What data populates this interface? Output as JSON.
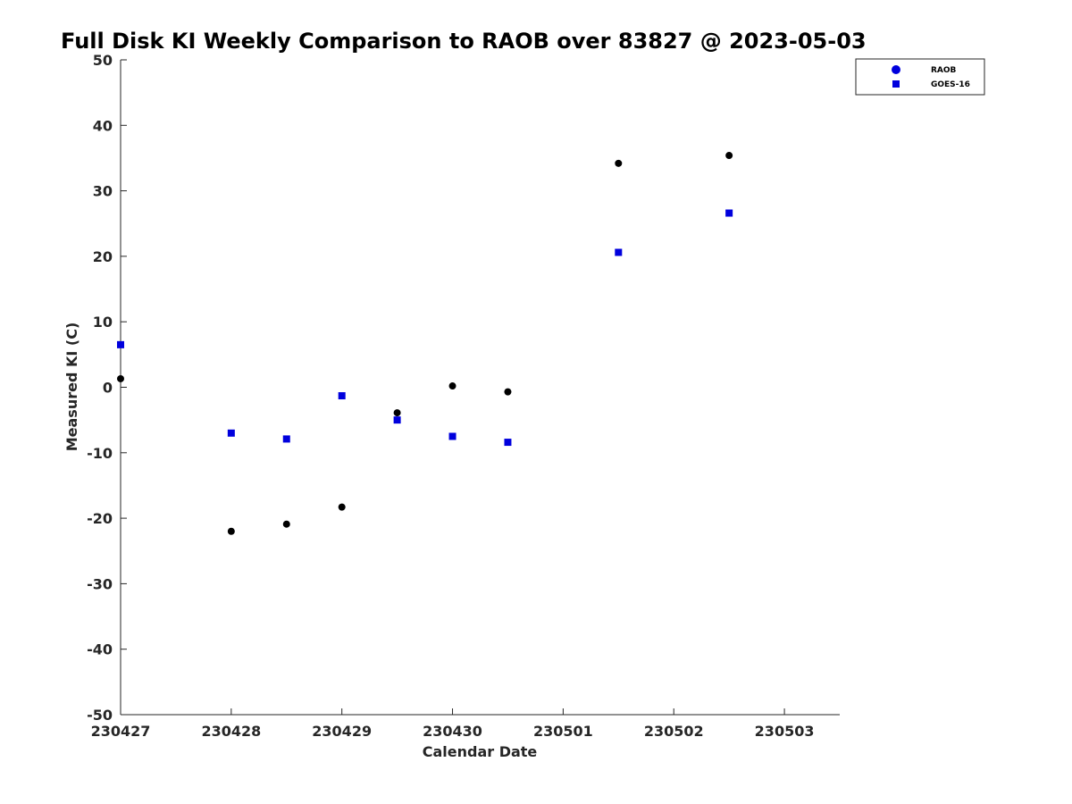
{
  "chart_data": {
    "type": "scatter",
    "title": "Full Disk KI Weekly Comparison to RAOB over 83827 @ 2023-05-03",
    "xlabel": "Calendar Date",
    "ylabel": "Measured KI (C)",
    "xlim": [
      0,
      6.5
    ],
    "ylim": [
      -50,
      50
    ],
    "x_ticks": [
      0,
      1,
      2,
      3,
      4,
      5,
      6
    ],
    "x_tick_labels": [
      "230427",
      "230428",
      "230429",
      "230430",
      "230501",
      "230502",
      "230503"
    ],
    "y_ticks": [
      -50,
      -40,
      -30,
      -20,
      -10,
      0,
      10,
      20,
      30,
      40,
      50
    ],
    "y_tick_labels": [
      "-50",
      "-40",
      "-30",
      "-20",
      "-10",
      "0",
      "10",
      "20",
      "30",
      "40",
      "50"
    ],
    "legend_position": "top-right",
    "series": [
      {
        "name": "RAOB",
        "marker": "circle",
        "color": "#000000",
        "x": [
          0,
          1,
          1.5,
          2,
          2.5,
          3,
          3.5,
          4.5,
          5.5
        ],
        "y": [
          1.3,
          -22.0,
          -20.9,
          -18.3,
          -3.9,
          0.2,
          -0.7,
          34.2,
          35.4
        ]
      },
      {
        "name": "GOES-16",
        "marker": "square",
        "color": "#0000dd",
        "x": [
          0,
          1,
          1.5,
          2,
          2.5,
          3,
          3.5,
          4.5,
          5.5
        ],
        "y": [
          6.5,
          -7.0,
          -7.9,
          -1.3,
          -5.0,
          -7.5,
          -8.4,
          20.6,
          26.6
        ]
      }
    ],
    "legend_entries": [
      {
        "label": "RAOB",
        "marker": "circle",
        "color": "#0000dd"
      },
      {
        "label": "GOES-16",
        "marker": "square",
        "color": "#0000dd"
      }
    ]
  }
}
